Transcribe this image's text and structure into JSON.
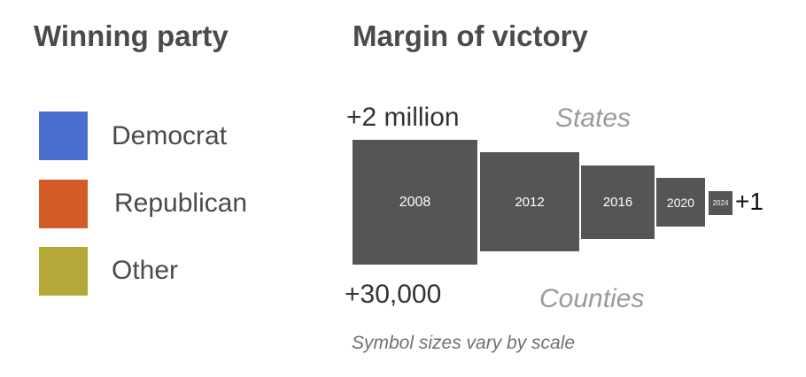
{
  "party_legend": {
    "title": "Winning party",
    "items": [
      {
        "label": "Democrat",
        "color": "#4a6fcf"
      },
      {
        "label": "Republican",
        "color": "#d45a26"
      },
      {
        "label": "Other",
        "color": "#b4a838"
      }
    ]
  },
  "margin_legend": {
    "title": "Margin of victory",
    "states_label": "States",
    "counties_label": "Counties",
    "states_max": "+2 million",
    "counties_max": "+30,000",
    "min": "+1",
    "years": [
      "2008",
      "2012",
      "2016",
      "2020",
      "2024"
    ],
    "symbol_color": "#555555",
    "note": "Symbol sizes vary by scale"
  }
}
